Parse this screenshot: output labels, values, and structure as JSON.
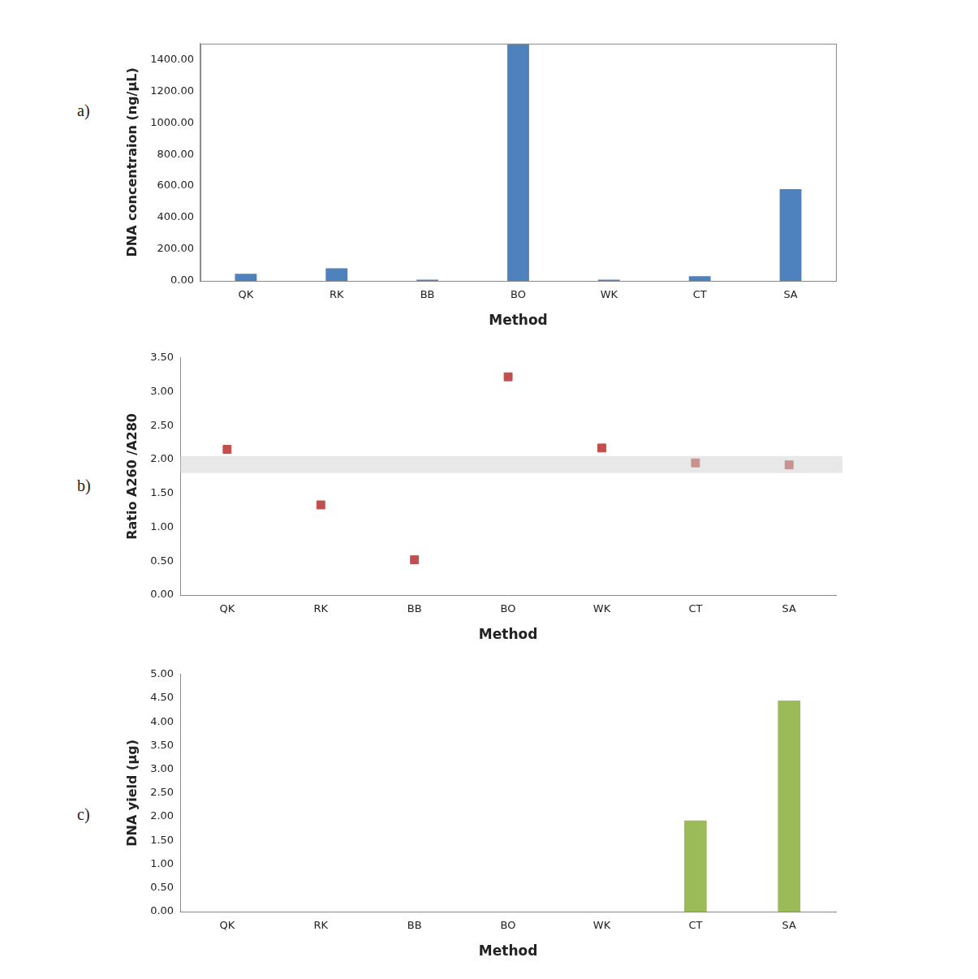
{
  "chart_data": [
    {
      "type": "bar",
      "panel": "a)",
      "x_label": "Method",
      "y_label": "DNA concentraion (ng/μL)",
      "categories": [
        "QK",
        "RK",
        "BB",
        "BO",
        "WK",
        "CT",
        "SA"
      ],
      "values": [
        45,
        80,
        8,
        1500,
        8,
        30,
        580
      ],
      "color": "#4f81bd",
      "ylim": [
        0,
        1500
      ],
      "yticks": [
        {
          "value": 0,
          "label": "0.00"
        },
        {
          "value": 200,
          "label": "200.00"
        },
        {
          "value": 400,
          "label": "400.00"
        },
        {
          "value": 600,
          "label": "600.00"
        },
        {
          "value": 800,
          "label": "800.00"
        },
        {
          "value": 1000,
          "label": "1000.00"
        },
        {
          "value": 1200,
          "label": "1200.00"
        },
        {
          "value": 1400,
          "label": "1400.00"
        }
      ],
      "grid": false
    },
    {
      "type": "scatter",
      "panel": "b)",
      "x_label": "Method",
      "y_label": "Ratio A260 /A280",
      "categories": [
        "QK",
        "RK",
        "BB",
        "BO",
        "WK",
        "CT",
        "SA"
      ],
      "values": [
        2.15,
        1.33,
        0.52,
        3.22,
        2.17,
        1.95,
        1.92
      ],
      "color": "#c0504d",
      "marker": "square",
      "band": [
        1.8,
        2.05
      ],
      "ylim": [
        0,
        3.5
      ],
      "yticks": [
        {
          "value": 0,
          "label": "0.00"
        },
        {
          "value": 0.5,
          "label": "0.50"
        },
        {
          "value": 1,
          "label": "1.00"
        },
        {
          "value": 1.5,
          "label": "1.50"
        },
        {
          "value": 2,
          "label": "2.00"
        },
        {
          "value": 2.5,
          "label": "2.50"
        },
        {
          "value": 3,
          "label": "3.00"
        },
        {
          "value": 3.5,
          "label": "3.50"
        }
      ],
      "grid": false
    },
    {
      "type": "bar",
      "panel": "c)",
      "x_label": "Method",
      "y_label": "DNA yield (μg)",
      "categories": [
        "QK",
        "RK",
        "BB",
        "BO",
        "WK",
        "CT",
        "SA"
      ],
      "values": [
        0,
        0,
        0,
        0,
        0,
        1.92,
        4.45
      ],
      "color": "#9bbb59",
      "ylim": [
        0,
        5
      ],
      "yticks": [
        {
          "value": 0,
          "label": "0.00"
        },
        {
          "value": 0.5,
          "label": "0.50"
        },
        {
          "value": 1,
          "label": "1.00"
        },
        {
          "value": 1.5,
          "label": "1.50"
        },
        {
          "value": 2,
          "label": "2.00"
        },
        {
          "value": 2.5,
          "label": "2.50"
        },
        {
          "value": 3,
          "label": "3.00"
        },
        {
          "value": 3.5,
          "label": "3.50"
        },
        {
          "value": 4,
          "label": "4.00"
        },
        {
          "value": 4.5,
          "label": "4.50"
        },
        {
          "value": 5,
          "label": "5.00"
        }
      ],
      "grid": false
    }
  ]
}
